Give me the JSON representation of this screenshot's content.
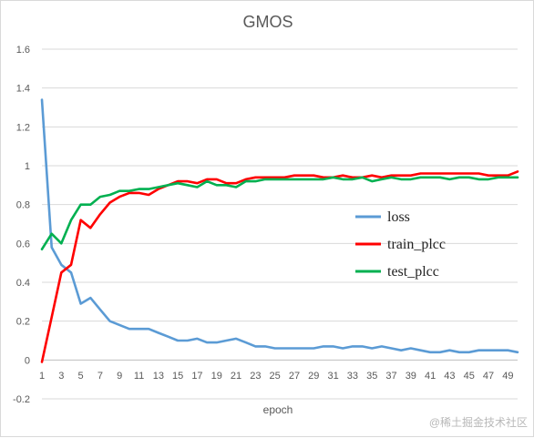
{
  "watermark": "@稀土掘金技术社区",
  "chart_data": {
    "type": "line",
    "title": "GMOS",
    "xlabel": "epoch",
    "ylabel": "",
    "ylim": [
      -0.2,
      1.6
    ],
    "yticks": [
      -0.2,
      0,
      0.2,
      0.4,
      0.6,
      0.8,
      1,
      1.2,
      1.4,
      1.6
    ],
    "yticklabels": [
      "-0.2",
      "0",
      "0.2",
      "0.4",
      "0.6",
      "0.8",
      "1",
      "1.2",
      "1.4",
      "1.6"
    ],
    "xticks": [
      1,
      3,
      5,
      7,
      9,
      11,
      13,
      15,
      17,
      19,
      21,
      23,
      25,
      27,
      29,
      31,
      33,
      35,
      37,
      39,
      41,
      43,
      45,
      47,
      49
    ],
    "xlim": [
      1,
      50
    ],
    "grid": "horizontal",
    "legend_position": "right",
    "x": [
      1,
      2,
      3,
      4,
      5,
      6,
      7,
      8,
      9,
      10,
      11,
      12,
      13,
      14,
      15,
      16,
      17,
      18,
      19,
      20,
      21,
      22,
      23,
      24,
      25,
      26,
      27,
      28,
      29,
      30,
      31,
      32,
      33,
      34,
      35,
      36,
      37,
      38,
      39,
      40,
      41,
      42,
      43,
      44,
      45,
      46,
      47,
      48,
      49,
      50
    ],
    "series": [
      {
        "name": "loss",
        "color": "#5b9bd5",
        "values": [
          1.34,
          0.58,
          0.49,
          0.45,
          0.29,
          0.32,
          0.26,
          0.2,
          0.18,
          0.16,
          0.16,
          0.16,
          0.14,
          0.12,
          0.1,
          0.1,
          0.11,
          0.09,
          0.09,
          0.1,
          0.11,
          0.09,
          0.07,
          0.07,
          0.06,
          0.06,
          0.06,
          0.06,
          0.06,
          0.07,
          0.07,
          0.06,
          0.07,
          0.07,
          0.06,
          0.07,
          0.06,
          0.05,
          0.06,
          0.05,
          0.04,
          0.04,
          0.05,
          0.04,
          0.04,
          0.05,
          0.05,
          0.05,
          0.05,
          0.04
        ]
      },
      {
        "name": "train_plcc",
        "color": "#ff0000",
        "values": [
          -0.01,
          0.22,
          0.45,
          0.49,
          0.72,
          0.68,
          0.75,
          0.81,
          0.84,
          0.86,
          0.86,
          0.85,
          0.88,
          0.9,
          0.92,
          0.92,
          0.91,
          0.93,
          0.93,
          0.91,
          0.91,
          0.93,
          0.94,
          0.94,
          0.94,
          0.94,
          0.95,
          0.95,
          0.95,
          0.94,
          0.94,
          0.95,
          0.94,
          0.94,
          0.95,
          0.94,
          0.95,
          0.95,
          0.95,
          0.96,
          0.96,
          0.96,
          0.96,
          0.96,
          0.96,
          0.96,
          0.95,
          0.95,
          0.95,
          0.97
        ]
      },
      {
        "name": "test_plcc",
        "color": "#00b050",
        "values": [
          0.57,
          0.65,
          0.6,
          0.72,
          0.8,
          0.8,
          0.84,
          0.85,
          0.87,
          0.87,
          0.88,
          0.88,
          0.89,
          0.9,
          0.91,
          0.9,
          0.89,
          0.92,
          0.9,
          0.9,
          0.89,
          0.92,
          0.92,
          0.93,
          0.93,
          0.93,
          0.93,
          0.93,
          0.93,
          0.93,
          0.94,
          0.93,
          0.93,
          0.94,
          0.92,
          0.93,
          0.94,
          0.93,
          0.93,
          0.94,
          0.94,
          0.94,
          0.93,
          0.94,
          0.94,
          0.93,
          0.93,
          0.94,
          0.94,
          0.94
        ]
      }
    ]
  }
}
